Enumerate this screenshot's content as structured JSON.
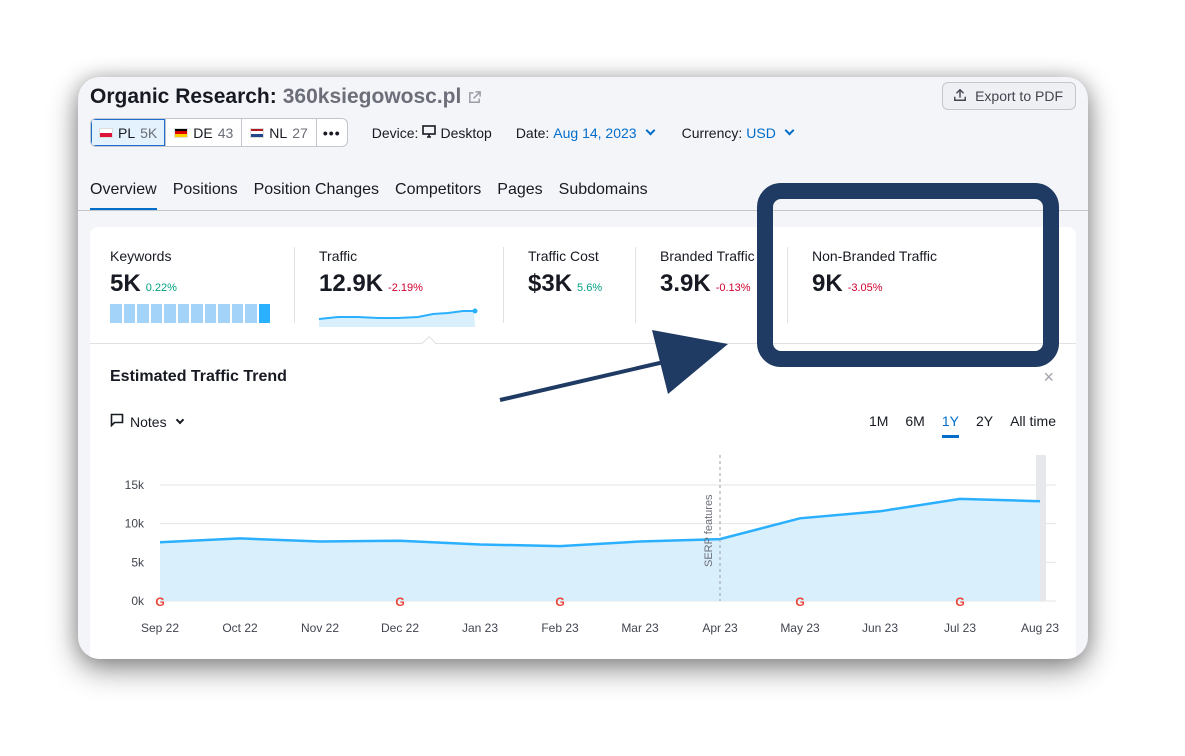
{
  "header": {
    "title": "Organic Research:",
    "domain": "360ksiegowosc.pl",
    "export_label": "Export to PDF"
  },
  "databases": [
    {
      "code": "PL",
      "count": "5K",
      "active": true
    },
    {
      "code": "DE",
      "count": "43",
      "active": false
    },
    {
      "code": "NL",
      "count": "27",
      "active": false
    }
  ],
  "more_label": "•••",
  "filters": {
    "device_label": "Device:",
    "device_value": "Desktop",
    "date_label": "Date:",
    "date_value": "Aug 14, 2023",
    "currency_label": "Currency:",
    "currency_value": "USD"
  },
  "tabs": [
    "Overview",
    "Positions",
    "Position Changes",
    "Competitors",
    "Pages",
    "Subdomains"
  ],
  "active_tab": "Overview",
  "metrics": {
    "keywords": {
      "label": "Keywords",
      "value": "5K",
      "delta": "0.22%"
    },
    "traffic": {
      "label": "Traffic",
      "value": "12.9K",
      "delta": "-2.19%"
    },
    "traffic_cost": {
      "label": "Traffic Cost",
      "value": "$3K",
      "delta": "5.6%"
    },
    "branded": {
      "label": "Branded Traffic",
      "value": "3.9K",
      "delta": "-0.13%"
    },
    "non_branded": {
      "label": "Non-Branded Traffic",
      "value": "9K",
      "delta": "-3.05%"
    }
  },
  "trend": {
    "title": "Estimated Traffic Trend",
    "close": "×",
    "notes_label": "Notes",
    "periods": [
      "1M",
      "6M",
      "1Y",
      "2Y",
      "All time"
    ],
    "active_period": "1Y"
  },
  "colors": {
    "accent": "#006dca",
    "line": "#2bb0ff",
    "area": "#d9effc",
    "callout": "#1f3b63",
    "positive": "#009f81",
    "negative": "#d1002f"
  },
  "chart_data": {
    "type": "area",
    "x": [
      "Sep 22",
      "Oct 22",
      "Nov 22",
      "Dec 22",
      "Jan 23",
      "Feb 23",
      "Mar 23",
      "Apr 23",
      "May 23",
      "Jun 23",
      "Jul 23",
      "Aug 23"
    ],
    "series": [
      {
        "values": [
          7600,
          8100,
          7700,
          7800,
          7300,
          7100,
          7700,
          8000,
          10700,
          11600,
          13200,
          12900
        ]
      }
    ],
    "y_ticks": [
      "0k",
      "5k",
      "10k",
      "15k"
    ],
    "ylim": [
      0,
      15000
    ],
    "annotation": "SERP features",
    "annotation_x": "Apr 23",
    "google_markers": [
      "Sep 22",
      "Dec 22",
      "Feb 23",
      "May 23",
      "Jul 23"
    ],
    "grid": true
  }
}
